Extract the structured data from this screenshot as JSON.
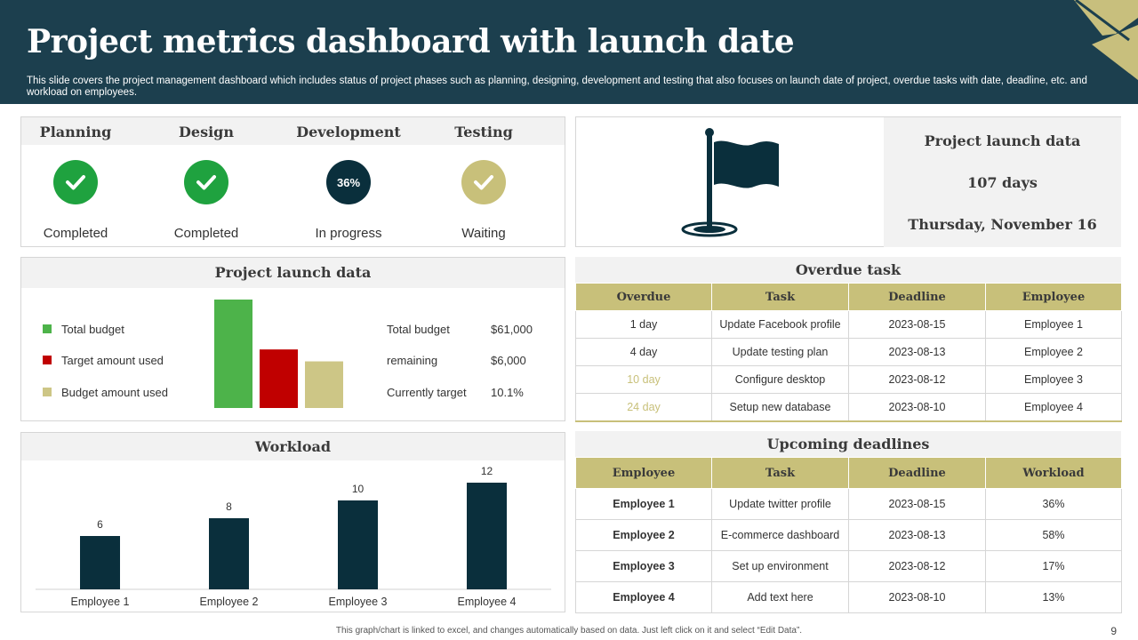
{
  "header": {
    "title": "Project metrics dashboard with launch date",
    "subtitle": "This slide covers the project management dashboard which includes status of project phases such as planning, designing, development and testing that also focuses on launch date of project, overdue tasks with date, deadline, etc. and workload on employees."
  },
  "phases": [
    {
      "title": "Planning",
      "status": "Completed",
      "icon": "check-icon",
      "color": "#1fa23f"
    },
    {
      "title": "Design",
      "status": "Completed",
      "icon": "check-icon",
      "color": "#1fa23f"
    },
    {
      "title": "Development",
      "status": "In progress",
      "icon": "progress-circle",
      "badge": "36%",
      "color": "#0a2f3c"
    },
    {
      "title": "Testing",
      "status": "Waiting",
      "icon": "check-icon",
      "color": "#c8c07a"
    }
  ],
  "launch_card": {
    "icon": "flag-icon",
    "heading": "Project launch data",
    "days": "107 days",
    "date": "Thursday, November 16"
  },
  "budget": {
    "heading": "Project launch data",
    "legend": [
      {
        "label": "Total budget",
        "color": "#4db34a"
      },
      {
        "label": "Target amount used",
        "color": "#c00000"
      },
      {
        "label": "Budget amount used",
        "color": "#cdc686"
      }
    ],
    "stats": [
      {
        "label": "Total budget",
        "value": "$61,000"
      },
      {
        "label": "remaining",
        "value": "$6,000"
      },
      {
        "label": "Currently target",
        "value": "10.1%"
      }
    ]
  },
  "workload": {
    "heading": "Workload"
  },
  "chart_data": [
    {
      "type": "bar",
      "title": "Project launch data",
      "categories": [
        "Total budget",
        "Target amount used",
        "Budget amount used"
      ],
      "values": [
        100,
        54,
        43
      ],
      "ylim": [
        0,
        100
      ],
      "colors": [
        "#4db34a",
        "#c00000",
        "#cdc686"
      ]
    },
    {
      "type": "bar",
      "title": "Workload",
      "categories": [
        "Employee 1",
        "Employee 2",
        "Employee 3",
        "Employee 4"
      ],
      "values": [
        6,
        8,
        10,
        12
      ],
      "ylim": [
        0,
        14
      ],
      "color": "#0a2f3c"
    }
  ],
  "overdue": {
    "heading": "Overdue task",
    "columns": [
      "Overdue",
      "Task",
      "Deadline",
      "Employee"
    ],
    "rows": [
      [
        "1 day",
        "Update Facebook profile",
        "2023-08-15",
        "Employee 1"
      ],
      [
        "4 day",
        "Update testing plan",
        "2023-08-13",
        "Employee 2"
      ],
      [
        "10 day",
        "Configure desktop",
        "2023-08-12",
        "Employee 3"
      ],
      [
        "24 day",
        "Setup new database",
        "2023-08-10",
        "Employee 4"
      ]
    ],
    "highlight_color": "#c8c07a"
  },
  "upcoming": {
    "heading": "Upcoming deadlines",
    "columns": [
      "Employee",
      "Task",
      "Deadline",
      "Workload"
    ],
    "rows": [
      [
        "Employee 1",
        "Update twitter profile",
        "2023-08-15",
        "36%"
      ],
      [
        "Employee 2",
        "E-commerce dashboard",
        "2023-08-13",
        "58%"
      ],
      [
        "Employee 3",
        "Set up environment",
        "2023-08-12",
        "17%"
      ],
      [
        "Employee 4",
        "Add text here",
        "2023-08-10",
        "13%"
      ]
    ]
  },
  "footer": {
    "note": "This graph/chart is linked to excel, and changes automatically based on data. Just left click on it and select “Edit Data”.",
    "page": "9"
  }
}
